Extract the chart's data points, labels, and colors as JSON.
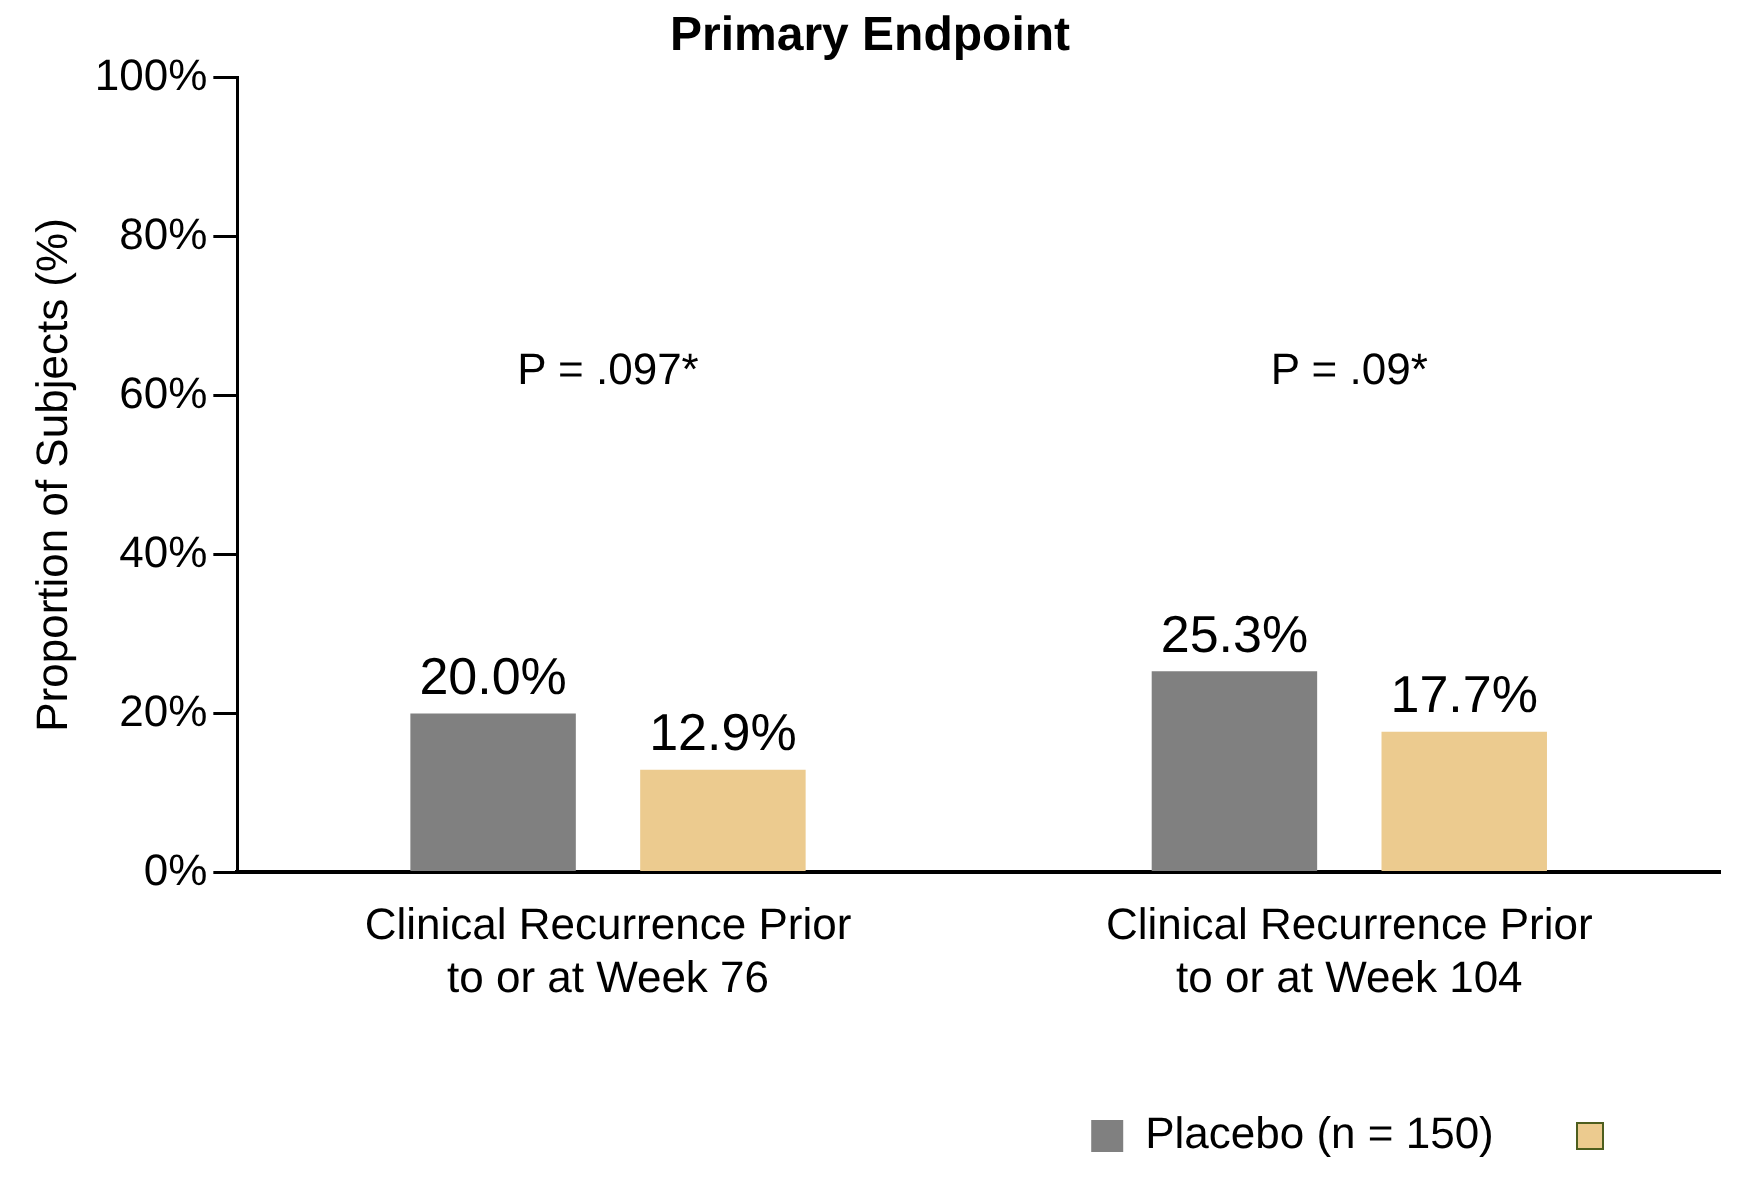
{
  "chart_data": {
    "type": "bar",
    "title": "Primary Endpoint",
    "ylabel": "Proportion of Subjects (%)",
    "categories": [
      "Clinical Recurrence Prior to or at Week 76",
      "Clinical Recurrence Prior to or at Week 104"
    ],
    "series": [
      {
        "name": "Placebo (n = 150)",
        "color": "#808080",
        "values": [
          20.0,
          25.3
        ],
        "value_labels": [
          "20.0%",
          "25.3%"
        ]
      },
      {
        "color": "#eccb8f",
        "values": [
          12.9,
          17.7
        ],
        "value_labels": [
          "12.9%",
          "17.7%"
        ]
      }
    ],
    "ylim": [
      0,
      100
    ],
    "yticks": [
      {
        "value": 0,
        "label": "0%"
      },
      {
        "value": 20,
        "label": "20%"
      },
      {
        "value": 40,
        "label": "40%"
      },
      {
        "value": 60,
        "label": "60%"
      },
      {
        "value": 80,
        "label": "80%"
      },
      {
        "value": 100,
        "label": "100%"
      }
    ],
    "annotations": [
      "P = .097*",
      "P = .09*"
    ],
    "grid": false,
    "legend": "bottom right"
  }
}
